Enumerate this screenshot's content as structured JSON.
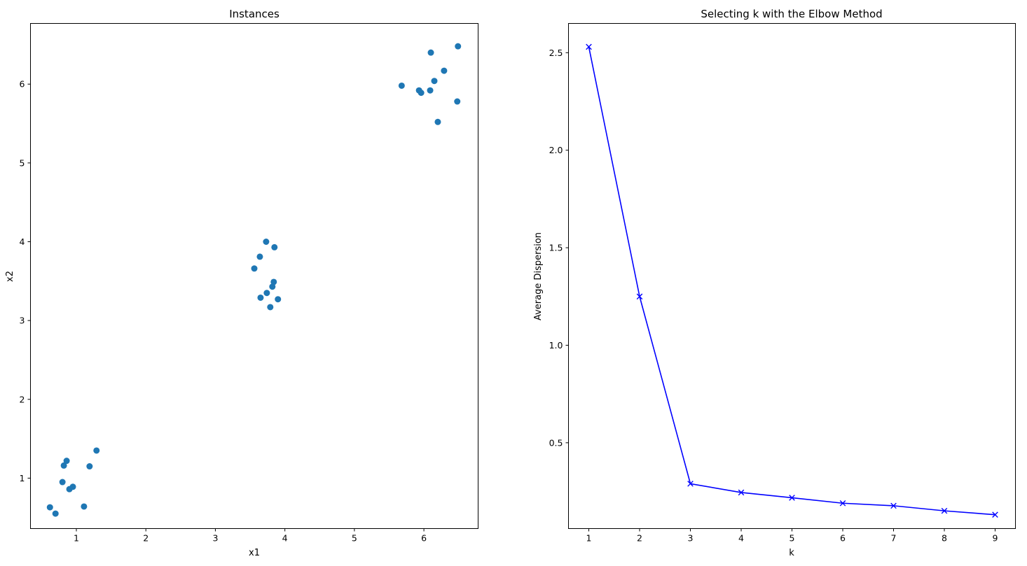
{
  "chart_data": [
    {
      "type": "scatter",
      "title": "Instances",
      "xlabel": "x1",
      "ylabel": "x2",
      "xlim": [
        0.34,
        6.78
      ],
      "ylim": [
        0.36,
        6.77
      ],
      "xticks": [
        1,
        2,
        3,
        4,
        5,
        6
      ],
      "yticks": [
        1,
        2,
        3,
        4,
        5,
        6
      ],
      "grid": false,
      "color": "#1f77b4",
      "marker": "circle",
      "points": [
        [
          0.62,
          0.63
        ],
        [
          0.7,
          0.55
        ],
        [
          0.8,
          0.95
        ],
        [
          0.82,
          1.16
        ],
        [
          0.86,
          1.22
        ],
        [
          0.9,
          0.86
        ],
        [
          0.95,
          0.89
        ],
        [
          1.11,
          0.64
        ],
        [
          1.19,
          1.15
        ],
        [
          1.29,
          1.35
        ],
        [
          3.56,
          3.66
        ],
        [
          3.64,
          3.81
        ],
        [
          3.65,
          3.29
        ],
        [
          3.73,
          4.0
        ],
        [
          3.74,
          3.35
        ],
        [
          3.79,
          3.17
        ],
        [
          3.82,
          3.43
        ],
        [
          3.84,
          3.49
        ],
        [
          3.85,
          3.93
        ],
        [
          3.9,
          3.27
        ],
        [
          5.68,
          5.98
        ],
        [
          5.93,
          5.92
        ],
        [
          5.96,
          5.89
        ],
        [
          6.09,
          5.92
        ],
        [
          6.1,
          6.4
        ],
        [
          6.15,
          6.04
        ],
        [
          6.2,
          5.52
        ],
        [
          6.29,
          6.17
        ],
        [
          6.48,
          5.78
        ],
        [
          6.49,
          6.48
        ]
      ]
    },
    {
      "type": "line",
      "title": "Selecting k with the Elbow Method",
      "xlabel": "k",
      "ylabel": "Average Dispersion",
      "xlim": [
        0.6,
        9.4
      ],
      "ylim": [
        0.06,
        2.65
      ],
      "xticks": [
        1,
        2,
        3,
        4,
        5,
        6,
        7,
        8,
        9
      ],
      "yticks": [
        0.5,
        1.0,
        1.5,
        2.0,
        2.5
      ],
      "ytick_labels": [
        "0.5",
        "1.0",
        "1.5",
        "2.0",
        "2.5"
      ],
      "grid": false,
      "color": "#0000ff",
      "marker": "x",
      "x": [
        1,
        2,
        3,
        4,
        5,
        6,
        7,
        8,
        9
      ],
      "values": [
        2.53,
        1.25,
        0.29,
        0.245,
        0.218,
        0.19,
        0.177,
        0.151,
        0.131
      ]
    }
  ]
}
